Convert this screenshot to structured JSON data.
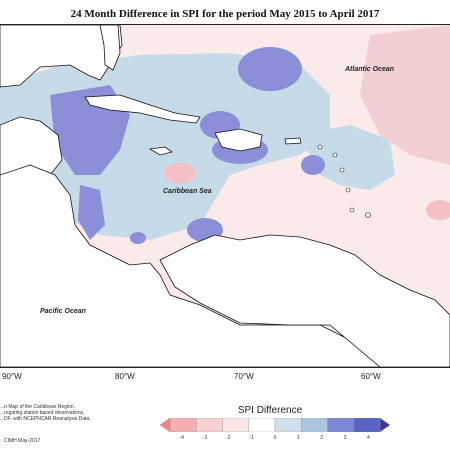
{
  "title": "24 Month Difference in SPI for the period May 2015 to April 2017",
  "map": {
    "labels": {
      "atlantic": "Atlantic Ocean",
      "caribbean": "Caribbean Sea",
      "pacific": "Pacific Ocean"
    },
    "longitude_ticks": [
      "90°W",
      "80°W",
      "70°W",
      "60°W"
    ]
  },
  "credit": {
    "line1": "...n Map of the Caribbean Region.",
    "line2": "...regating station based observations,",
    "line3": "...DF, with NCEPNCAR Reanalysis Data.",
    "footer": "CIMH May-2017"
  },
  "legend": {
    "title": "SPI Difference",
    "ticks": [
      "-4",
      "-3",
      "-2",
      "-1",
      "0",
      "1",
      "2",
      "3",
      "4"
    ],
    "colors": [
      "#ee8484",
      "#f4b0b0",
      "#f8d2d2",
      "#fbe6e6",
      "#ffffff",
      "#cfe0ec",
      "#a9c6de",
      "#7f86d6",
      "#5a62c4",
      "#3c3a8e"
    ]
  }
}
